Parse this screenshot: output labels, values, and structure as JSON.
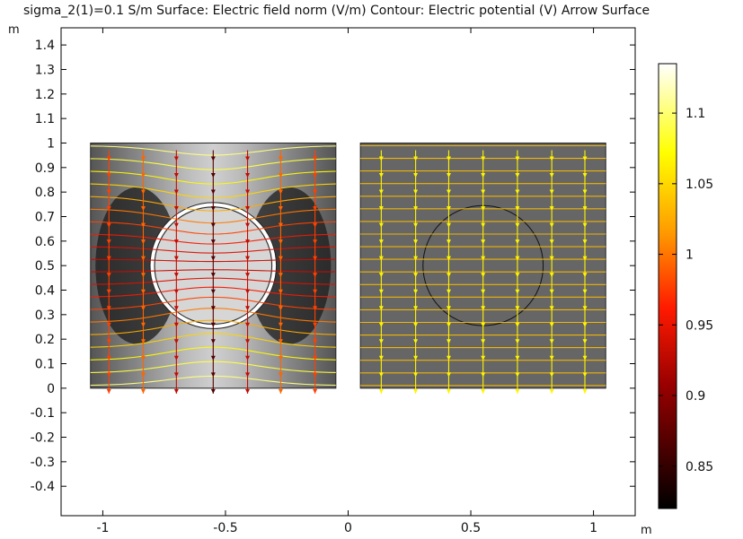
{
  "title": "sigma_2(1)=0.1 S/m  Surface: Electric field norm (V/m)  Contour: Electric potential (V)  Arrow Surface",
  "chart_data": {
    "type": "surface",
    "x_unit": "m",
    "y_unit": "m",
    "xlim": [
      -1.17,
      1.17
    ],
    "ylim": [
      -0.52,
      1.47
    ],
    "x_ticks": [
      "-1",
      "-0.5",
      "0",
      "0.5",
      "1"
    ],
    "x_tick_values": [
      -1,
      -0.5,
      0,
      0.5,
      1
    ],
    "y_ticks": [
      "1.4",
      "1.3",
      "1.2",
      "1.1",
      "1",
      "0.9",
      "0.8",
      "0.7",
      "0.6",
      "0.5",
      "0.4",
      "0.3",
      "0.2",
      "0.1",
      "0",
      "-0.1",
      "-0.2",
      "-0.3",
      "-0.4"
    ],
    "y_tick_values": [
      1.4,
      1.3,
      1.2,
      1.1,
      1,
      0.9,
      0.8,
      0.7,
      0.6,
      0.5,
      0.4,
      0.3,
      0.2,
      0.1,
      0,
      -0.1,
      -0.2,
      -0.3,
      -0.4
    ],
    "domains": [
      {
        "name": "left",
        "x": [
          -1.05,
          -0.05
        ],
        "y": [
          0,
          1
        ],
        "inclusion_center": [
          -0.55,
          0.5
        ],
        "inclusion_radius": 0.25
      },
      {
        "name": "right",
        "x": [
          0.05,
          1.05
        ],
        "y": [
          0,
          1
        ],
        "inclusion_center": [
          0.55,
          0.5
        ],
        "inclusion_radius": 0.245
      }
    ],
    "arrow_columns": [
      {
        "domain": "left",
        "x": [
          -0.975,
          -0.835,
          -0.7,
          -0.55,
          -0.41,
          -0.275,
          -0.135
        ]
      },
      {
        "domain": "right",
        "x": [
          0.135,
          0.275,
          0.41,
          0.55,
          0.69,
          0.83,
          0.965
        ]
      }
    ],
    "colorbar": {
      "range": [
        0.82,
        1.135
      ],
      "ticks": [
        "1.1",
        "1.05",
        "1",
        "0.95",
        "0.9",
        "0.85"
      ],
      "tick_values": [
        1.1,
        1.05,
        1,
        0.95,
        0.9,
        0.85
      ],
      "colormap": "heat"
    }
  }
}
